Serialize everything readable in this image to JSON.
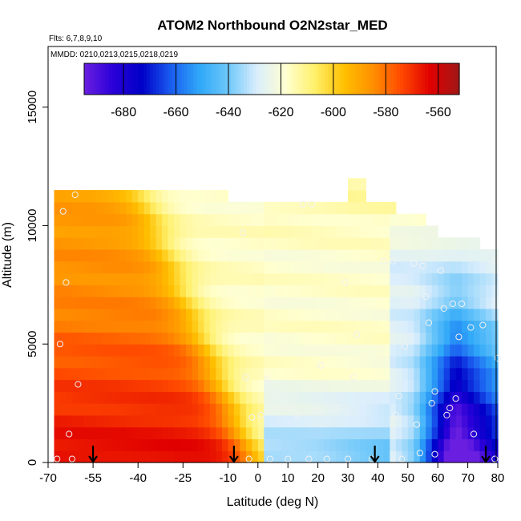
{
  "chart_data": {
    "type": "heatmap",
    "title": "ATOM2 Northbound O2N2star_MED",
    "flights_note": "Flts: 6,7,8,9,10",
    "dates_note": "MMDD: 0210,0213,0215,0218,0219",
    "xlabel": "Latitude (deg N)",
    "ylabel": "Altitude (m)",
    "xlim": [
      -70,
      85
    ],
    "ylim": [
      0,
      17500
    ],
    "x_ticks": [
      -70,
      -55,
      -40,
      -25,
      -10,
      0,
      10,
      20,
      30,
      40,
      50,
      60,
      70,
      80
    ],
    "x_tick_labels": [
      "-70",
      "-55",
      "-40",
      "-25",
      "-10",
      "0",
      "10",
      "20",
      "30",
      "40",
      "50",
      "60",
      "70",
      "80"
    ],
    "y_ticks": [
      0,
      5000,
      10000,
      15000
    ],
    "y_tick_labels": [
      "0",
      "5000",
      "10000",
      "15000"
    ],
    "colorbar": {
      "range": [
        -695,
        -552
      ],
      "ticks": [
        -680,
        -660,
        -640,
        -620,
        -600,
        -580,
        -560
      ],
      "tick_labels": [
        "-680",
        "-660",
        "-640",
        "-620",
        "-600",
        "-580",
        "-560"
      ],
      "colors": [
        "#6a1fe0",
        "#2a00d8",
        "#0000c8",
        "#1a5cf0",
        "#2fa8f8",
        "#70c8fa",
        "#dbeefc",
        "#ffffd0",
        "#fff06a",
        "#ffc000",
        "#ff9000",
        "#ff4800",
        "#e00000",
        "#a01818"
      ]
    },
    "grid": {
      "lat_min": -68,
      "lat_step": 2,
      "lat_count": 74,
      "alt_min": 0,
      "alt_step": 500,
      "alt_count": 24
    },
    "vertical_profile_latitudes": [
      -55,
      -8,
      39,
      76
    ],
    "sample_points": [
      [
        -67,
        150
      ],
      [
        -66,
        5000
      ],
      [
        -65,
        10600
      ],
      [
        -64,
        7600
      ],
      [
        -63,
        1200
      ],
      [
        -62,
        150
      ],
      [
        -61,
        11300
      ],
      [
        -60,
        3300
      ],
      [
        -5,
        9700
      ],
      [
        -4,
        3600
      ],
      [
        -3,
        150
      ],
      [
        -2,
        1900
      ],
      [
        1,
        2000
      ],
      [
        3,
        3500
      ],
      [
        4,
        150
      ],
      [
        6,
        2900
      ],
      [
        8,
        2300
      ],
      [
        10,
        150
      ],
      [
        11,
        2300
      ],
      [
        13,
        2000
      ],
      [
        15,
        10900
      ],
      [
        17,
        150
      ],
      [
        18,
        10900
      ],
      [
        20,
        2200
      ],
      [
        21,
        4100
      ],
      [
        23,
        150
      ],
      [
        26,
        2300
      ],
      [
        29,
        7600
      ],
      [
        30,
        150
      ],
      [
        32,
        3600
      ],
      [
        33,
        5400
      ],
      [
        38,
        150
      ],
      [
        42,
        8500
      ],
      [
        45,
        8500
      ],
      [
        46,
        2000
      ],
      [
        47,
        2800
      ],
      [
        48,
        150
      ],
      [
        49,
        4900
      ],
      [
        52,
        8400
      ],
      [
        53,
        1600
      ],
      [
        54,
        400
      ],
      [
        55,
        8300
      ],
      [
        56,
        7000
      ],
      [
        57,
        5900
      ],
      [
        58,
        2500
      ],
      [
        59,
        3000
      ],
      [
        59,
        350
      ],
      [
        61,
        8100
      ],
      [
        62,
        6500
      ],
      [
        63,
        2000
      ],
      [
        64,
        2300
      ],
      [
        65,
        6700
      ],
      [
        66,
        2700
      ],
      [
        67,
        5300
      ],
      [
        68,
        6700
      ],
      [
        71,
        5700
      ],
      [
        72,
        1200
      ],
      [
        75,
        5800
      ],
      [
        79,
        8500
      ],
      [
        79,
        150
      ],
      [
        80,
        4400
      ]
    ]
  }
}
